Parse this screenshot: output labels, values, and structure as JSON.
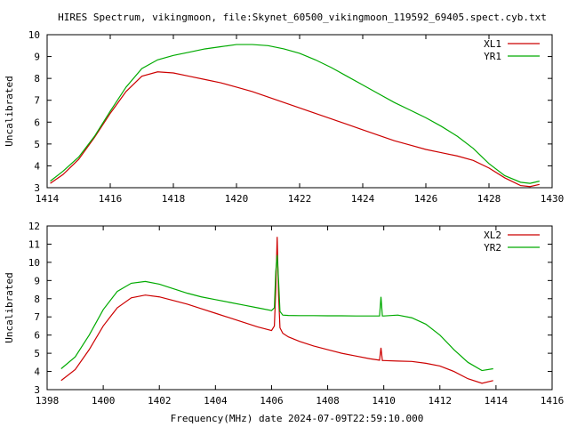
{
  "chart_data": [
    {
      "type": "line",
      "title": "HIRES Spectrum, vikingmoon, file:Skynet_60500_vikingmoon_119592_69405.spect.cyb.txt",
      "xlabel": "",
      "ylabel": "Uncalibrated",
      "xlim": [
        1414,
        1430
      ],
      "ylim": [
        3,
        10
      ],
      "xticks": [
        1414,
        1416,
        1418,
        1420,
        1422,
        1424,
        1426,
        1428,
        1430
      ],
      "yticks": [
        3,
        4,
        5,
        6,
        7,
        8,
        9,
        10
      ],
      "grid": false,
      "legend_position": "top-right",
      "series": [
        {
          "name": "XL1",
          "color": "#cc0000",
          "x": [
            1414.1,
            1414.5,
            1415.0,
            1415.5,
            1416.0,
            1416.5,
            1417.0,
            1417.5,
            1418.0,
            1418.5,
            1419.0,
            1419.5,
            1420.0,
            1420.5,
            1421.0,
            1421.5,
            1422.0,
            1422.5,
            1423.0,
            1423.5,
            1424.0,
            1424.5,
            1425.0,
            1425.5,
            1426.0,
            1426.5,
            1427.0,
            1427.5,
            1428.0,
            1428.5,
            1429.0,
            1429.3,
            1429.6
          ],
          "y": [
            3.2,
            3.6,
            4.3,
            5.3,
            6.4,
            7.4,
            8.1,
            8.3,
            8.25,
            8.1,
            7.95,
            7.8,
            7.6,
            7.4,
            7.15,
            6.9,
            6.65,
            6.4,
            6.15,
            5.9,
            5.65,
            5.4,
            5.15,
            4.95,
            4.75,
            4.6,
            4.45,
            4.25,
            3.9,
            3.45,
            3.1,
            3.05,
            3.15
          ]
        },
        {
          "name": "YR1",
          "color": "#00aa00",
          "x": [
            1414.1,
            1414.5,
            1415.0,
            1415.5,
            1416.0,
            1416.5,
            1417.0,
            1417.5,
            1418.0,
            1418.5,
            1419.0,
            1419.5,
            1420.0,
            1420.5,
            1421.0,
            1421.5,
            1422.0,
            1422.5,
            1423.0,
            1423.5,
            1424.0,
            1424.5,
            1425.0,
            1425.5,
            1426.0,
            1426.5,
            1427.0,
            1427.5,
            1428.0,
            1428.5,
            1429.0,
            1429.3,
            1429.6
          ],
          "y": [
            3.3,
            3.75,
            4.4,
            5.35,
            6.5,
            7.6,
            8.45,
            8.85,
            9.05,
            9.2,
            9.35,
            9.45,
            9.55,
            9.55,
            9.5,
            9.35,
            9.15,
            8.85,
            8.5,
            8.1,
            7.7,
            7.3,
            6.9,
            6.55,
            6.2,
            5.8,
            5.35,
            4.8,
            4.1,
            3.55,
            3.25,
            3.2,
            3.3
          ]
        }
      ]
    },
    {
      "type": "line",
      "title": "",
      "xlabel": "Frequency(MHz) date 2024-07-09T22:59:10.000",
      "ylabel": "Uncalibrated",
      "xlim": [
        1398,
        1416
      ],
      "ylim": [
        3,
        12
      ],
      "xticks": [
        1398,
        1400,
        1402,
        1404,
        1406,
        1408,
        1410,
        1412,
        1414,
        1416
      ],
      "yticks": [
        3,
        4,
        5,
        6,
        7,
        8,
        9,
        10,
        11,
        12
      ],
      "grid": false,
      "legend_position": "top-right",
      "series": [
        {
          "name": "XL2",
          "color": "#cc0000",
          "x": [
            1398.5,
            1399.0,
            1399.5,
            1400.0,
            1400.5,
            1401.0,
            1401.5,
            1402.0,
            1402.5,
            1403.0,
            1403.5,
            1404.0,
            1404.5,
            1405.0,
            1405.5,
            1406.0,
            1406.1,
            1406.15,
            1406.2,
            1406.25,
            1406.3,
            1406.4,
            1406.6,
            1407.0,
            1407.5,
            1408.0,
            1408.5,
            1409.0,
            1409.5,
            1409.85,
            1409.9,
            1409.95,
            1410.0,
            1410.5,
            1411.0,
            1411.5,
            1412.0,
            1412.5,
            1413.0,
            1413.5,
            1413.9
          ],
          "y": [
            3.5,
            4.1,
            5.2,
            6.5,
            7.5,
            8.05,
            8.2,
            8.1,
            7.9,
            7.7,
            7.45,
            7.2,
            6.95,
            6.7,
            6.45,
            6.25,
            6.5,
            8.5,
            11.4,
            8.2,
            6.4,
            6.1,
            5.9,
            5.65,
            5.4,
            5.2,
            5.0,
            4.85,
            4.7,
            4.62,
            5.3,
            4.6,
            4.6,
            4.57,
            4.55,
            4.45,
            4.3,
            4.0,
            3.6,
            3.35,
            3.5
          ]
        },
        {
          "name": "YR2",
          "color": "#00aa00",
          "x": [
            1398.5,
            1399.0,
            1399.5,
            1400.0,
            1400.5,
            1401.0,
            1401.5,
            1402.0,
            1402.5,
            1403.0,
            1403.5,
            1404.0,
            1404.5,
            1405.0,
            1405.5,
            1406.0,
            1406.1,
            1406.15,
            1406.2,
            1406.25,
            1406.3,
            1406.4,
            1406.6,
            1407.0,
            1407.5,
            1408.0,
            1408.5,
            1409.0,
            1409.5,
            1409.85,
            1409.9,
            1409.95,
            1410.0,
            1410.5,
            1411.0,
            1411.5,
            1412.0,
            1412.5,
            1413.0,
            1413.5,
            1413.9
          ],
          "y": [
            4.15,
            4.8,
            6.0,
            7.4,
            8.4,
            8.85,
            8.95,
            8.8,
            8.55,
            8.3,
            8.1,
            7.95,
            7.8,
            7.65,
            7.5,
            7.35,
            7.5,
            9.5,
            10.4,
            9.0,
            7.3,
            7.1,
            7.08,
            7.07,
            7.07,
            7.06,
            7.06,
            7.05,
            7.05,
            7.05,
            8.1,
            7.05,
            7.05,
            7.1,
            6.95,
            6.6,
            6.0,
            5.2,
            4.5,
            4.05,
            4.15
          ]
        }
      ]
    }
  ]
}
